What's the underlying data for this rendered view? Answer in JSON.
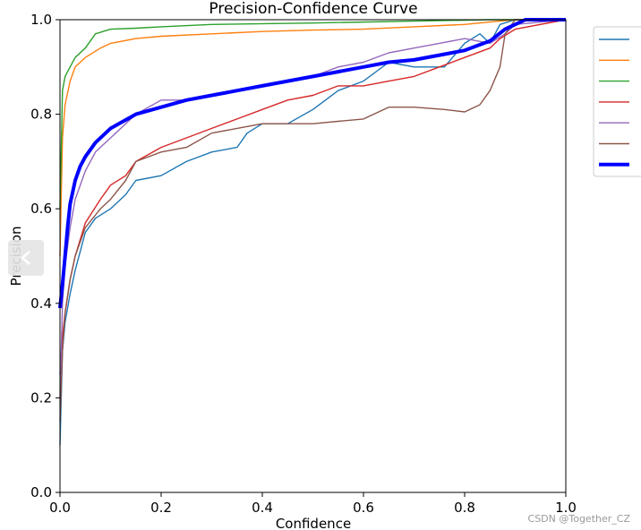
{
  "chart_data": {
    "type": "line",
    "title": "Precision-Confidence Curve",
    "xlabel": "Confidence",
    "ylabel": "Precision",
    "xlim": [
      0,
      1
    ],
    "ylim": [
      0,
      1
    ],
    "xticks": [
      "0.0",
      "0.2",
      "0.4",
      "0.6",
      "0.8",
      "1.0"
    ],
    "yticks": [
      "0.0",
      "0.2",
      "0.4",
      "0.6",
      "0.8",
      "1.0"
    ],
    "grid": false,
    "legend_position": "right-outside",
    "series": [
      {
        "color": "#1f77b4",
        "width": 1.4,
        "x": [
          0.0,
          0.005,
          0.01,
          0.02,
          0.03,
          0.05,
          0.07,
          0.1,
          0.13,
          0.15,
          0.2,
          0.25,
          0.3,
          0.35,
          0.37,
          0.4,
          0.45,
          0.5,
          0.55,
          0.6,
          0.65,
          0.7,
          0.76,
          0.8,
          0.83,
          0.85,
          0.87,
          0.9,
          0.95,
          1.0
        ],
        "y": [
          0.1,
          0.3,
          0.36,
          0.42,
          0.47,
          0.55,
          0.58,
          0.6,
          0.63,
          0.66,
          0.67,
          0.7,
          0.72,
          0.73,
          0.76,
          0.78,
          0.78,
          0.81,
          0.85,
          0.87,
          0.91,
          0.9,
          0.9,
          0.95,
          0.97,
          0.95,
          0.99,
          1.0,
          1.0,
          1.0
        ]
      },
      {
        "color": "#ff7f0e",
        "width": 1.4,
        "x": [
          0.0,
          0.005,
          0.01,
          0.02,
          0.03,
          0.05,
          0.08,
          0.1,
          0.15,
          0.2,
          0.3,
          0.4,
          0.5,
          0.6,
          0.7,
          0.8,
          0.85,
          0.9,
          1.0
        ],
        "y": [
          0.5,
          0.75,
          0.82,
          0.87,
          0.9,
          0.92,
          0.94,
          0.95,
          0.96,
          0.965,
          0.97,
          0.975,
          0.978,
          0.98,
          0.985,
          0.99,
          0.995,
          1.0,
          1.0
        ]
      },
      {
        "color": "#2ca02c",
        "width": 1.4,
        "x": [
          0.0,
          0.005,
          0.01,
          0.02,
          0.03,
          0.05,
          0.07,
          0.1,
          0.15,
          0.2,
          0.3,
          0.5,
          0.7,
          0.85,
          1.0
        ],
        "y": [
          0.6,
          0.85,
          0.88,
          0.9,
          0.92,
          0.94,
          0.97,
          0.98,
          0.982,
          0.985,
          0.99,
          0.993,
          0.997,
          1.0,
          1.0
        ]
      },
      {
        "color": "#d62728",
        "width": 1.4,
        "x": [
          0.0,
          0.005,
          0.01,
          0.02,
          0.03,
          0.05,
          0.08,
          0.1,
          0.13,
          0.15,
          0.2,
          0.25,
          0.3,
          0.35,
          0.4,
          0.45,
          0.5,
          0.55,
          0.6,
          0.65,
          0.7,
          0.75,
          0.8,
          0.85,
          0.87,
          0.9,
          1.0
        ],
        "y": [
          0.25,
          0.33,
          0.38,
          0.45,
          0.5,
          0.57,
          0.62,
          0.65,
          0.67,
          0.7,
          0.73,
          0.75,
          0.77,
          0.79,
          0.81,
          0.83,
          0.84,
          0.86,
          0.86,
          0.87,
          0.88,
          0.9,
          0.92,
          0.94,
          0.96,
          0.98,
          1.0
        ]
      },
      {
        "color": "#9467bd",
        "width": 1.4,
        "x": [
          0.0,
          0.005,
          0.01,
          0.02,
          0.03,
          0.05,
          0.07,
          0.1,
          0.15,
          0.2,
          0.25,
          0.3,
          0.35,
          0.4,
          0.45,
          0.5,
          0.55,
          0.6,
          0.65,
          0.7,
          0.75,
          0.8,
          0.85,
          0.88,
          0.9,
          1.0
        ],
        "y": [
          0.2,
          0.4,
          0.48,
          0.56,
          0.62,
          0.68,
          0.72,
          0.75,
          0.8,
          0.83,
          0.83,
          0.84,
          0.85,
          0.86,
          0.87,
          0.88,
          0.9,
          0.91,
          0.93,
          0.94,
          0.95,
          0.96,
          0.95,
          0.97,
          0.99,
          1.0
        ]
      },
      {
        "color": "#8c564b",
        "width": 1.4,
        "x": [
          0.0,
          0.005,
          0.01,
          0.02,
          0.03,
          0.05,
          0.08,
          0.1,
          0.13,
          0.15,
          0.2,
          0.25,
          0.3,
          0.35,
          0.4,
          0.45,
          0.5,
          0.55,
          0.6,
          0.62,
          0.65,
          0.7,
          0.76,
          0.8,
          0.83,
          0.85,
          0.87,
          0.88,
          0.9,
          1.0
        ],
        "y": [
          0.15,
          0.3,
          0.38,
          0.45,
          0.5,
          0.56,
          0.6,
          0.62,
          0.66,
          0.7,
          0.72,
          0.73,
          0.76,
          0.77,
          0.78,
          0.78,
          0.78,
          0.785,
          0.79,
          0.8,
          0.815,
          0.815,
          0.81,
          0.805,
          0.82,
          0.85,
          0.9,
          0.97,
          1.0,
          1.0
        ]
      },
      {
        "color": "#0000ff",
        "width": 4,
        "x": [
          0.0,
          0.005,
          0.01,
          0.015,
          0.02,
          0.03,
          0.04,
          0.05,
          0.07,
          0.1,
          0.15,
          0.2,
          0.25,
          0.3,
          0.35,
          0.4,
          0.45,
          0.5,
          0.55,
          0.6,
          0.65,
          0.7,
          0.75,
          0.8,
          0.85,
          0.88,
          0.9,
          0.92,
          1.0
        ],
        "y": [
          0.39,
          0.44,
          0.5,
          0.56,
          0.61,
          0.66,
          0.69,
          0.71,
          0.74,
          0.77,
          0.8,
          0.815,
          0.83,
          0.84,
          0.85,
          0.86,
          0.87,
          0.88,
          0.89,
          0.9,
          0.91,
          0.915,
          0.925,
          0.935,
          0.955,
          0.98,
          0.99,
          1.0,
          1.0
        ]
      }
    ]
  },
  "watermark": "CSDN @Together_CZ"
}
